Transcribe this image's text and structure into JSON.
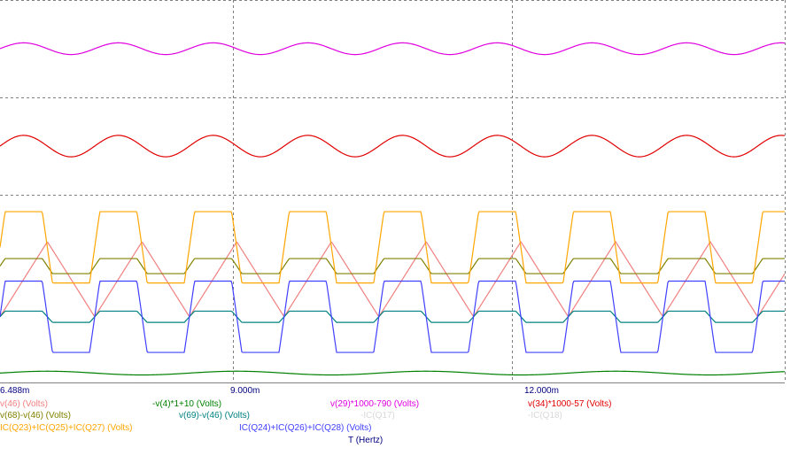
{
  "chart_data": {
    "type": "line",
    "x_unit": "T (Hertz)",
    "x_ticks": [
      "6.488m",
      "9.000m",
      "12.000m"
    ],
    "x_tick_values": [
      0.006488,
      0.009,
      0.012
    ],
    "xlim": [
      0.006488,
      0.01494
    ],
    "grid": "dotted",
    "series": [
      {
        "name": "v(46) (Volts)",
        "color": "#f08080",
        "shape": "triangle",
        "panel": 3,
        "center": 0.45,
        "amp": 0.4,
        "phase": 0.0,
        "period": 0.00102
      },
      {
        "name": "v(68)-v(46) (Volts)",
        "color": "#808000",
        "shape": "square",
        "panel": 3,
        "center": 0.38,
        "amp": 0.08,
        "phase": 0.0,
        "period": 0.00102
      },
      {
        "name": "IC(Q23)+IC(Q25)+IC(Q27) (Volts)",
        "color": "#ffa500",
        "shape": "square",
        "panel": 3,
        "center": 0.28,
        "amp": 0.38,
        "phase": 0.0,
        "period": 0.00102
      },
      {
        "name": "-v(4)*1+10 (Volts)",
        "color": "#008000",
        "shape": "sine",
        "panel": 3,
        "center": 0.95,
        "amp": 0.02,
        "phase": 0.0,
        "period": 0.00204
      },
      {
        "name": "v(69)-v(46) (Volts)",
        "color": "#008080",
        "shape": "square",
        "panel": 3,
        "center": 0.65,
        "amp": 0.06,
        "phase": 0.0,
        "period": 0.00102
      },
      {
        "name": "IC(Q24)+IC(Q26)+IC(Q28) (Volts)",
        "color": "#4040ff",
        "shape": "square",
        "panel": 3,
        "center": 0.65,
        "amp": 0.38,
        "phase": 0.0,
        "period": 0.00102
      },
      {
        "name": "v(29)*1000-790 (Volts)",
        "color": "#e000e0",
        "shape": "sine",
        "panel": 1,
        "center": 0.5,
        "amp": 0.12,
        "phase": 0.0,
        "period": 0.00102
      },
      {
        "name": "-IC(Q17)",
        "color": "#d8d8d8",
        "shape": "none",
        "panel": 3,
        "center": 0.5,
        "amp": 0.0,
        "phase": 0.0,
        "period": 0.00102
      },
      {
        "name": "v(34)*1000-57 (Volts)",
        "color": "#e00000",
        "shape": "sine",
        "panel": 2,
        "center": 0.5,
        "amp": 0.22,
        "phase": 0.0,
        "period": 0.00102
      },
      {
        "name": "-IC(Q18)",
        "color": "#d8d8d8",
        "shape": "none",
        "panel": 3,
        "center": 0.5,
        "amp": 0.0,
        "phase": 0.0,
        "period": 0.00102
      }
    ]
  }
}
